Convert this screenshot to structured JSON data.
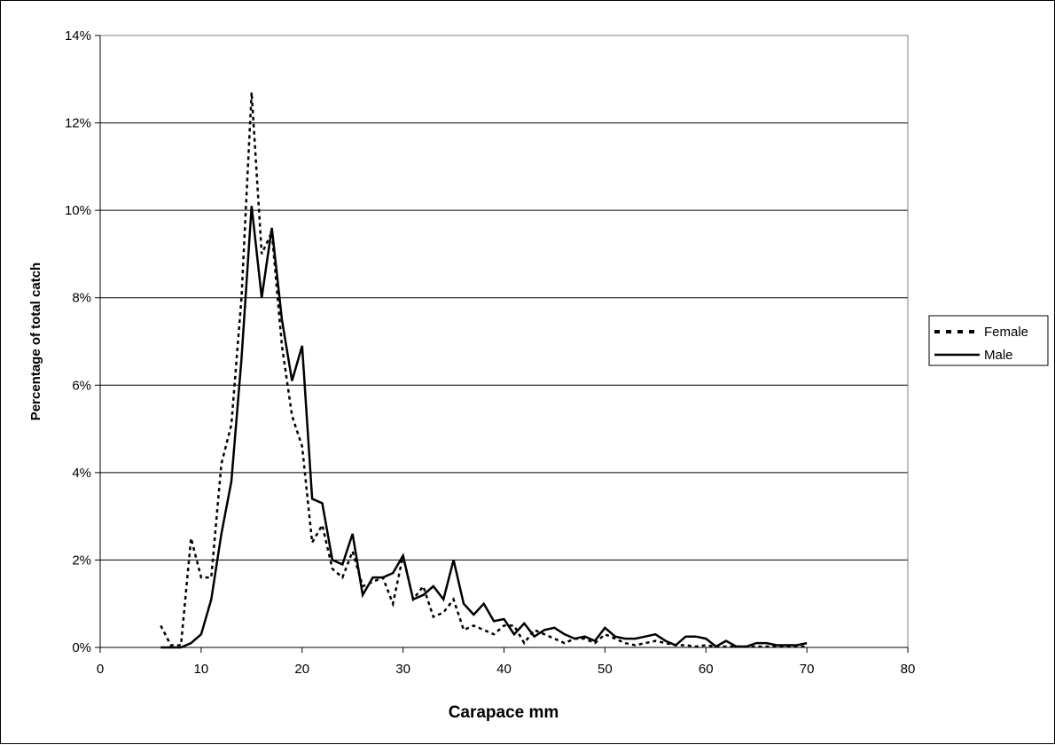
{
  "chart_data": {
    "type": "line",
    "title": "",
    "xlabel": "Carapace mm",
    "ylabel": "Percentage of total catch",
    "xlim": [
      0,
      80
    ],
    "ylim": [
      0,
      14
    ],
    "x_ticks": [
      0,
      10,
      20,
      30,
      40,
      50,
      60,
      70,
      80
    ],
    "x_tick_labels": [
      "0",
      "10",
      "20",
      "30",
      "40",
      "50",
      "60",
      "70",
      "80"
    ],
    "y_ticks": [
      0,
      2,
      4,
      6,
      8,
      10,
      12,
      14
    ],
    "y_tick_labels": [
      "0%",
      "2%",
      "4%",
      "6%",
      "8%",
      "10%",
      "12%",
      "14%"
    ],
    "grid": "horizontal major gridlines",
    "legend_position": "right",
    "series": [
      {
        "name": "Female",
        "style": "dotted",
        "color": "#000000",
        "x": [
          6,
          7,
          8,
          9,
          10,
          11,
          12,
          13,
          14,
          15,
          16,
          17,
          18,
          19,
          20,
          21,
          22,
          23,
          24,
          25,
          26,
          27,
          28,
          29,
          30,
          31,
          32,
          33,
          34,
          35,
          36,
          37,
          38,
          39,
          40,
          41,
          42,
          43,
          44,
          45,
          46,
          47,
          48,
          49,
          50,
          51,
          52,
          53,
          54,
          55,
          56,
          57,
          58,
          59,
          60,
          61,
          62,
          63,
          64,
          65,
          66,
          67,
          68,
          69,
          70
        ],
        "y": [
          0.5,
          0.05,
          0.05,
          2.5,
          1.6,
          1.6,
          4.2,
          5.1,
          8.0,
          12.7,
          9.0,
          9.5,
          6.9,
          5.3,
          4.6,
          2.4,
          2.8,
          1.8,
          1.6,
          2.2,
          1.4,
          1.5,
          1.6,
          1.0,
          2.1,
          1.1,
          1.4,
          0.7,
          0.8,
          1.1,
          0.4,
          0.5,
          0.4,
          0.3,
          0.5,
          0.5,
          0.1,
          0.4,
          0.3,
          0.2,
          0.1,
          0.2,
          0.2,
          0.1,
          0.3,
          0.2,
          0.1,
          0.05,
          0.1,
          0.15,
          0.1,
          0.05,
          0.05,
          0.02,
          0.05,
          0.02,
          0.02,
          0.02,
          0.02,
          0.02,
          0.02,
          0.02,
          0.02,
          0.02,
          0.02
        ]
      },
      {
        "name": "Male",
        "style": "solid",
        "color": "#000000",
        "x": [
          6,
          7,
          8,
          9,
          10,
          11,
          12,
          13,
          14,
          15,
          16,
          17,
          18,
          19,
          20,
          21,
          22,
          23,
          24,
          25,
          26,
          27,
          28,
          29,
          30,
          31,
          32,
          33,
          34,
          35,
          36,
          37,
          38,
          39,
          40,
          41,
          42,
          43,
          44,
          45,
          46,
          47,
          48,
          49,
          50,
          51,
          52,
          53,
          54,
          55,
          56,
          57,
          58,
          59,
          60,
          61,
          62,
          63,
          64,
          65,
          66,
          67,
          68,
          69,
          70
        ],
        "y": [
          0.0,
          0.0,
          0.0,
          0.1,
          0.3,
          1.1,
          2.6,
          3.8,
          6.6,
          10.1,
          8.0,
          9.6,
          7.5,
          6.1,
          6.9,
          3.4,
          3.3,
          2.0,
          1.9,
          2.6,
          1.2,
          1.6,
          1.6,
          1.7,
          2.1,
          1.1,
          1.2,
          1.4,
          1.1,
          2.0,
          1.0,
          0.75,
          1.0,
          0.6,
          0.65,
          0.3,
          0.55,
          0.25,
          0.4,
          0.45,
          0.3,
          0.2,
          0.25,
          0.15,
          0.45,
          0.25,
          0.2,
          0.2,
          0.25,
          0.3,
          0.15,
          0.05,
          0.25,
          0.25,
          0.2,
          0.02,
          0.15,
          0.02,
          0.02,
          0.1,
          0.1,
          0.05,
          0.05,
          0.05,
          0.1
        ]
      }
    ]
  }
}
